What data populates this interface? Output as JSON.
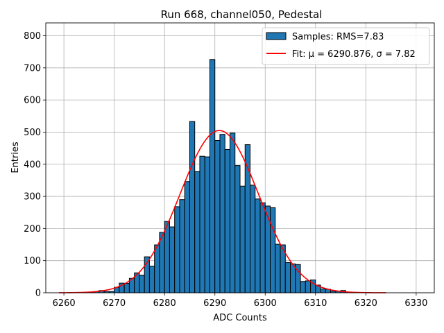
{
  "chart_data": {
    "type": "bar",
    "title": "Run 668, channel050, Pedestal",
    "xlabel": "ADC Counts",
    "ylabel": "Entries",
    "xlim": [
      6256.4,
      6333.6
    ],
    "ylim": [
      0,
      840
    ],
    "xticks": [
      6260,
      6270,
      6280,
      6290,
      6300,
      6310,
      6320,
      6330
    ],
    "yticks": [
      0,
      100,
      200,
      300,
      400,
      500,
      600,
      700,
      800
    ],
    "grid": true,
    "legend_position": "top-right",
    "bin_width": 1,
    "colors": {
      "bars": "#1f77b4",
      "bar_edge": "#000000",
      "fit": "#ff0000",
      "grid": "#b0b0b0"
    },
    "series": [
      {
        "name": "Samples: RMS=7.83",
        "kind": "histogram",
        "bins": [
          [
            6264,
            1
          ],
          [
            6265,
            2
          ],
          [
            6266,
            4
          ],
          [
            6267,
            7
          ],
          [
            6268,
            4
          ],
          [
            6269,
            4
          ],
          [
            6270,
            17
          ],
          [
            6271,
            30
          ],
          [
            6272,
            29
          ],
          [
            6273,
            45
          ],
          [
            6274,
            62
          ],
          [
            6275,
            55
          ],
          [
            6276,
            112
          ],
          [
            6277,
            83
          ],
          [
            6278,
            149
          ],
          [
            6279,
            188
          ],
          [
            6280,
            222
          ],
          [
            6281,
            205
          ],
          [
            6282,
            268
          ],
          [
            6283,
            290
          ],
          [
            6284,
            346
          ],
          [
            6285,
            533
          ],
          [
            6286,
            377
          ],
          [
            6287,
            425
          ],
          [
            6288,
            423
          ],
          [
            6289,
            726
          ],
          [
            6290,
            474
          ],
          [
            6291,
            493
          ],
          [
            6292,
            446
          ],
          [
            6293,
            497
          ],
          [
            6294,
            396
          ],
          [
            6295,
            332
          ],
          [
            6296,
            461
          ],
          [
            6297,
            335
          ],
          [
            6298,
            292
          ],
          [
            6299,
            280
          ],
          [
            6300,
            270
          ],
          [
            6301,
            265
          ],
          [
            6302,
            151
          ],
          [
            6303,
            149
          ],
          [
            6304,
            94
          ],
          [
            6305,
            90
          ],
          [
            6306,
            88
          ],
          [
            6307,
            35
          ],
          [
            6308,
            37
          ],
          [
            6309,
            40
          ],
          [
            6310,
            24
          ],
          [
            6311,
            12
          ],
          [
            6312,
            11
          ],
          [
            6313,
            5
          ],
          [
            6314,
            5
          ],
          [
            6315,
            7
          ],
          [
            6316,
            1
          ],
          [
            6317,
            1
          ]
        ]
      },
      {
        "name": "Fit: μ = 6290.876, σ = 7.82",
        "kind": "gaussian",
        "mu": 6290.876,
        "sigma": 7.82,
        "amplitude": 505,
        "x_range": [
          6259,
          6324
        ]
      }
    ]
  }
}
